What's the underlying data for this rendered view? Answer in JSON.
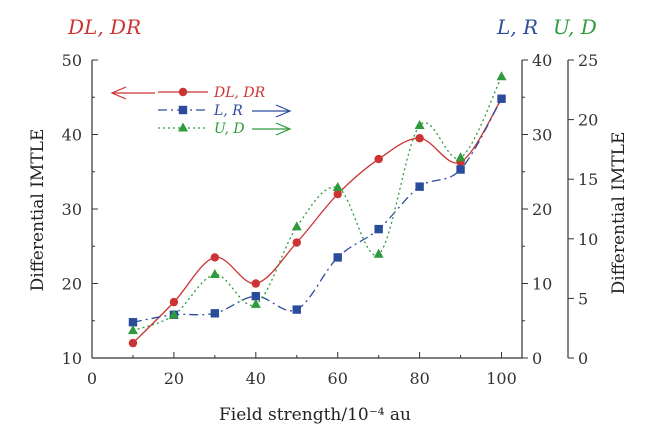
{
  "chart_data": {
    "type": "line",
    "xlabel": "Field strength/10⁻⁴ au",
    "ylabel_left": "Differential IMTLE",
    "ylabel_right": "Differential IMTLE",
    "xlim": [
      0,
      105
    ],
    "axes": {
      "DL, DR": {
        "ylim": [
          10,
          50
        ],
        "ticks": [
          10,
          20,
          30,
          40,
          50
        ],
        "side": "left"
      },
      "L, R": {
        "ylim": [
          0,
          40
        ],
        "ticks": [
          0,
          10,
          20,
          30,
          40
        ],
        "side": "right-inner"
      },
      "U, D": {
        "ylim": [
          0,
          25
        ],
        "ticks": [
          0,
          5,
          10,
          15,
          20,
          25
        ],
        "side": "right-outer"
      }
    },
    "x_ticks": [
      0,
      20,
      40,
      60,
      80,
      100
    ],
    "grid": false,
    "legend_position": "top-left",
    "corner_labels": {
      "left": "DL, DR",
      "right_blue": "L, R",
      "right_green": "U, D"
    },
    "series": [
      {
        "name": "DL, DR",
        "axis": "DL, DR",
        "color": "#cc3333",
        "line_style": "solid",
        "marker": "circle",
        "x": [
          10,
          20,
          30,
          40,
          50,
          60,
          70,
          80,
          90,
          100
        ],
        "y": [
          12,
          17.5,
          23.5,
          20,
          25.5,
          32,
          36.7,
          39.5,
          36.3,
          44.8
        ]
      },
      {
        "name": "L, R",
        "axis": "L, R",
        "color": "#2b4c9c",
        "line_style": "dash-dot",
        "marker": "square",
        "x": [
          10,
          20,
          30,
          40,
          50,
          60,
          70,
          80,
          90,
          100
        ],
        "y": [
          4.8,
          5.8,
          6.0,
          8.3,
          6.5,
          13.5,
          17.3,
          23.0,
          25.3,
          34.8
        ]
      },
      {
        "name": "U, D",
        "axis": "U, D",
        "color": "#2e9a3c",
        "line_style": "dotted",
        "marker": "triangle",
        "x": [
          10,
          20,
          30,
          40,
          50,
          60,
          70,
          80,
          90,
          100
        ],
        "y": [
          2.3,
          3.6,
          7.0,
          4.5,
          11.0,
          14.3,
          8.7,
          19.5,
          16.8,
          23.6
        ]
      }
    ]
  }
}
